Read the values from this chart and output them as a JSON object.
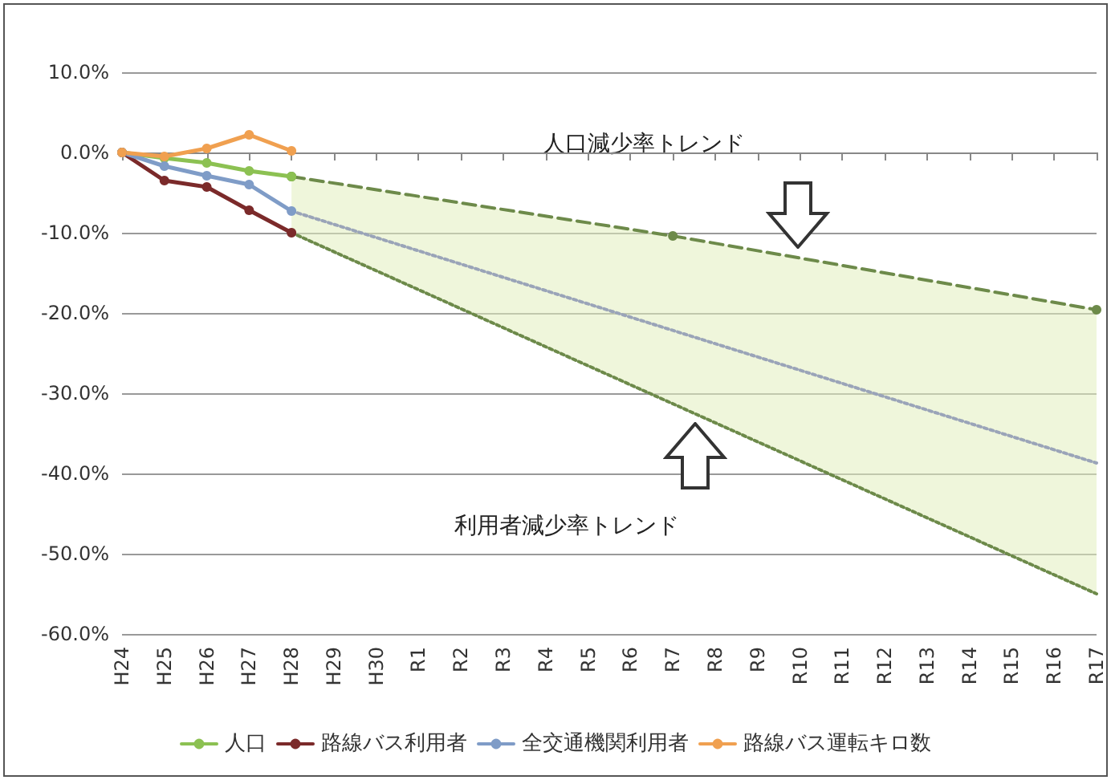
{
  "chart_data": {
    "type": "line",
    "categories": [
      "H24",
      "H25",
      "H26",
      "H27",
      "H28",
      "H29",
      "H30",
      "R1",
      "R2",
      "R3",
      "R4",
      "R5",
      "R6",
      "R7",
      "R8",
      "R9",
      "R10",
      "R11",
      "R12",
      "R13",
      "R14",
      "R15",
      "R16",
      "R17"
    ],
    "series": [
      {
        "name": "人口",
        "color": "#8cc152",
        "values": [
          0,
          -0.7,
          -1.3,
          -2.3,
          -3.0,
          null,
          null,
          null,
          null,
          null,
          null,
          null,
          null,
          null,
          null,
          null,
          null,
          null,
          null,
          null,
          null,
          null,
          null,
          null
        ]
      },
      {
        "name": "路線バス利用者",
        "color": "#7b2a2a",
        "values": [
          0,
          -3.5,
          -4.3,
          -7.2,
          -10.0,
          null,
          null,
          null,
          null,
          null,
          null,
          null,
          null,
          null,
          null,
          null,
          null,
          null,
          null,
          null,
          null,
          null,
          null,
          null
        ]
      },
      {
        "name": "全交通機関利用者",
        "color": "#7f9cc7",
        "values": [
          0,
          -1.7,
          -2.9,
          -4.0,
          -7.3,
          null,
          null,
          null,
          null,
          null,
          null,
          null,
          null,
          null,
          null,
          null,
          null,
          null,
          null,
          null,
          null,
          null,
          null,
          null
        ]
      },
      {
        "name": "路線バス運転キロ数",
        "color": "#f0a050",
        "values": [
          0,
          -0.5,
          0.5,
          2.2,
          0.2,
          null,
          null,
          null,
          null,
          null,
          null,
          null,
          null,
          null,
          null,
          null,
          null,
          null,
          null,
          null,
          null,
          null,
          null,
          null
        ]
      },
      {
        "type": "line",
        "color": "#6d8a4a",
        "x": [
          "H28",
          "R7",
          "R17"
        ],
        "values": [
          -3.0,
          -10.4,
          -19.6
        ],
        "lower": [
          -10.0,
          -31.3,
          -55.0
        ],
        "upper": [
          -3.0,
          -10.4,
          -19.6
        ],
        "line_style": "dashed",
        "marker": "circle"
      },
      {
        "type": "line",
        "color": "#9aa4b8",
        "x": [
          "H28",
          "R17"
        ],
        "values": [
          -7.3,
          -38.7
        ],
        "line_style": "dotted",
        "marker": "none"
      },
      {
        "type": "line",
        "color": "#6d8a4a",
        "x": [
          "H28",
          "R17"
        ],
        "values": [
          -10.0,
          -55.0
        ],
        "line_style": "dotted",
        "marker": "none"
      }
    ],
    "ylim": [
      -60,
      10
    ],
    "yticks": [
      {
        "value": -60,
        "label": "-60.0%"
      },
      {
        "value": -50,
        "label": "-50.0%"
      },
      {
        "value": -40,
        "label": "-40.0%"
      },
      {
        "value": -30,
        "label": "-30.0%"
      },
      {
        "value": -20,
        "label": "-20.0%"
      },
      {
        "value": -10,
        "label": "-10.0%"
      },
      {
        "value": 0,
        "label": "0.0%"
      },
      {
        "value": 10,
        "label": "10.0%"
      }
    ],
    "annotations": [
      "人口減少率トレンド",
      "利用者減少率トレンド"
    ],
    "grid": "y",
    "legend": "bottom",
    "marker": "circle",
    "line_style": "solid"
  }
}
